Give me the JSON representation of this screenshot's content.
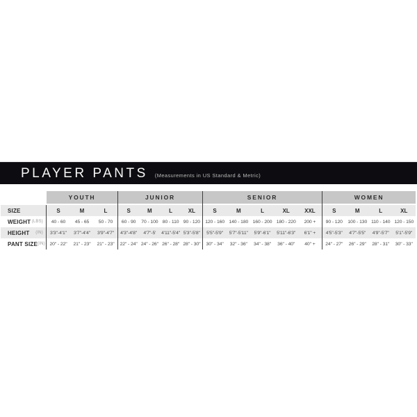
{
  "header": {
    "title": "PLAYER PANTS",
    "subtitle": "(Measurements in US Standard & Metric)"
  },
  "table": {
    "row_labels": [
      {
        "label": "SIZE",
        "unit": ""
      },
      {
        "label": "WEIGHT",
        "unit": "(LBS)"
      },
      {
        "label": "HEIGHT",
        "unit": "(IN)"
      },
      {
        "label": "PANT SIZE",
        "unit": "(IN)"
      }
    ],
    "groups": [
      {
        "name": "YOUTH",
        "sizes": [
          "S",
          "M",
          "L"
        ],
        "weight": [
          "40 - 60",
          "45 - 65",
          "50 - 70"
        ],
        "height": [
          "3'3\"-4'1\"",
          "3'7\"-4'4\"",
          "3'9\"-4'7\""
        ],
        "pant": [
          "20\" - 22\"",
          "21\" - 23\"",
          "21\" - 23\""
        ]
      },
      {
        "name": "JUNIOR",
        "sizes": [
          "S",
          "M",
          "L",
          "XL"
        ],
        "weight": [
          "60 - 90",
          "70 - 100",
          "80 - 110",
          "90 - 120"
        ],
        "height": [
          "4'3\"-4'8\"",
          "4'7\"-5'",
          "4'11\"-5'4\"",
          "5'3\"-5'8\""
        ],
        "pant": [
          "22\" - 24\"",
          "24\" - 26\"",
          "26\" - 28\"",
          "28\" - 30\""
        ]
      },
      {
        "name": "SENIOR",
        "sizes": [
          "S",
          "M",
          "L",
          "XL",
          "XXL"
        ],
        "weight": [
          "120 - 160",
          "140 - 180",
          "160 - 200",
          "180 - 220",
          "200 +"
        ],
        "height": [
          "5'5\"-5'9\"",
          "5'7\"-5'11\"",
          "5'9\"-6'1\"",
          "5'11\"-6'3\"",
          "6'1\" +"
        ],
        "pant": [
          "30\" - 34\"",
          "32\" - 36\"",
          "34\" - 38\"",
          "36\" - 40\"",
          "40\" +"
        ]
      },
      {
        "name": "WOMEN",
        "sizes": [
          "S",
          "M",
          "L",
          "XL"
        ],
        "weight": [
          "90 - 120",
          "100 - 130",
          "110 - 140",
          "120 - 150"
        ],
        "height": [
          "4'5\"-5'3\"",
          "4'7\"-5'5\"",
          "4'9\"-5'7\"",
          "5'1\"-5'9\""
        ],
        "pant": [
          "24\" - 27\"",
          "26\" - 29\"",
          "28\" - 31\"",
          "30\" - 33\""
        ]
      }
    ]
  },
  "colors": {
    "header_bar": "#0d0d11",
    "group_header_bg": "#c7c7c7",
    "row_stripe": "#e9e9e9",
    "divider": "#3c3c3c",
    "text_dark": "#2b2b2b",
    "text_value": "#474747",
    "unit_text": "#9b9b9b"
  }
}
